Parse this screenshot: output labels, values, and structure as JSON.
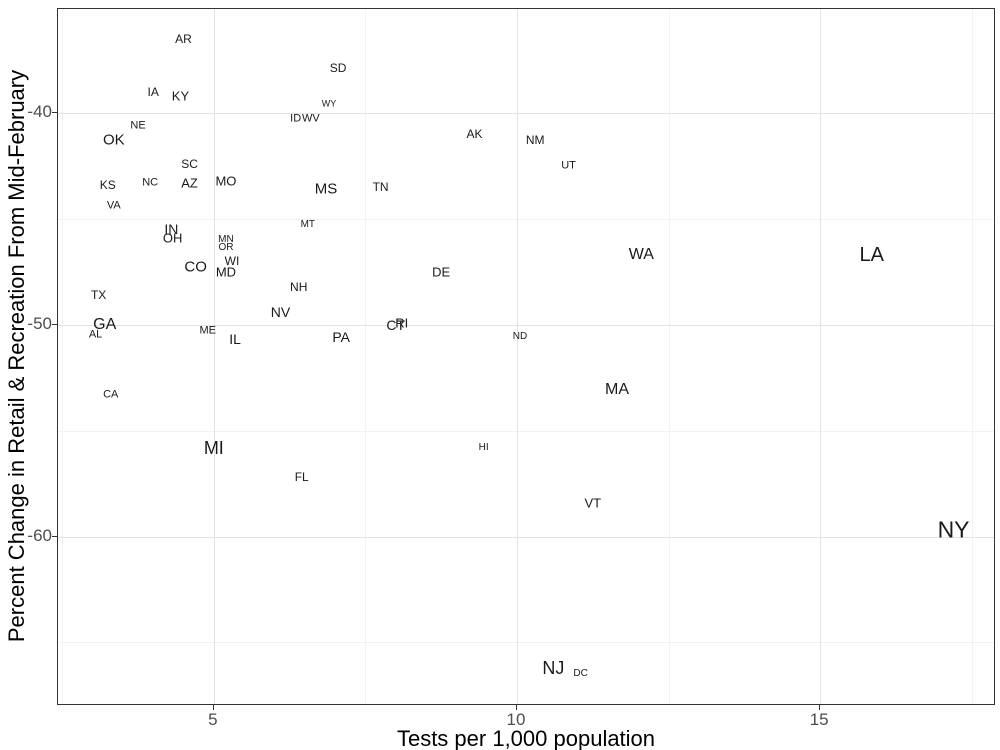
{
  "figure": {
    "background_color": "#ffffff",
    "panel_border_color": "#333333",
    "grid_major_color": "#e3e3e3",
    "grid_minor_color": "#f2f2f2",
    "axis_title_color": "#000000",
    "tick_label_color": "#4d4d4d",
    "state_label_color": "#1a1a1a"
  },
  "chart_data": {
    "type": "scatter",
    "title": "",
    "xlabel": "Tests per 1,000 population",
    "ylabel": "Percent Change in Retail & Recreation From Mid-February",
    "xlim": [
      2.43,
      17.9
    ],
    "ylim": [
      -68.0,
      -35.1
    ],
    "grid": true,
    "legend_position": "none",
    "marker_style": "state abbreviation text labels, font size varies by state",
    "x_ticks": [
      {
        "value": 5,
        "label": "5"
      },
      {
        "value": 10,
        "label": "10"
      },
      {
        "value": 15,
        "label": "15"
      }
    ],
    "y_ticks": [
      {
        "value": -40,
        "label": "-40"
      },
      {
        "value": -50,
        "label": "-50"
      },
      {
        "value": -60,
        "label": "-60"
      }
    ],
    "x_minor_gridlines": [
      2.5,
      7.5,
      12.5,
      17.5
    ],
    "y_minor_gridlines": [
      -45,
      -55,
      -65
    ],
    "states": [
      {
        "label": "AR",
        "x": 4.5,
        "y": -36.5,
        "size": 12
      },
      {
        "label": "SD",
        "x": 7.05,
        "y": -37.9,
        "size": 12
      },
      {
        "label": "IA",
        "x": 4.0,
        "y": -39.0,
        "size": 12
      },
      {
        "label": "KY",
        "x": 4.45,
        "y": -39.2,
        "size": 13
      },
      {
        "label": "WY",
        "x": 6.9,
        "y": -39.6,
        "size": 9
      },
      {
        "label": "ID",
        "x": 6.35,
        "y": -40.3,
        "size": 11
      },
      {
        "label": "WV",
        "x": 6.6,
        "y": -40.3,
        "size": 11
      },
      {
        "label": "NE",
        "x": 3.75,
        "y": -40.6,
        "size": 11
      },
      {
        "label": "AK",
        "x": 9.3,
        "y": -41.0,
        "size": 12
      },
      {
        "label": "OK",
        "x": 3.35,
        "y": -41.3,
        "size": 15
      },
      {
        "label": "NM",
        "x": 10.3,
        "y": -41.3,
        "size": 12
      },
      {
        "label": "SC",
        "x": 4.6,
        "y": -42.4,
        "size": 12
      },
      {
        "label": "UT",
        "x": 10.85,
        "y": -42.5,
        "size": 11
      },
      {
        "label": "MO",
        "x": 5.2,
        "y": -43.2,
        "size": 13
      },
      {
        "label": "NC",
        "x": 3.95,
        "y": -43.3,
        "size": 11
      },
      {
        "label": "AZ",
        "x": 4.6,
        "y": -43.3,
        "size": 13
      },
      {
        "label": "KS",
        "x": 3.25,
        "y": -43.4,
        "size": 12
      },
      {
        "label": "TN",
        "x": 7.75,
        "y": -43.5,
        "size": 12
      },
      {
        "label": "MS",
        "x": 6.85,
        "y": -43.6,
        "size": 15
      },
      {
        "label": "VA",
        "x": 3.35,
        "y": -44.4,
        "size": 11
      },
      {
        "label": "MT",
        "x": 6.55,
        "y": -45.3,
        "size": 10
      },
      {
        "label": "IN",
        "x": 4.3,
        "y": -45.5,
        "size": 14
      },
      {
        "label": "OH",
        "x": 4.32,
        "y": -45.9,
        "size": 13
      },
      {
        "label": "MN",
        "x": 5.2,
        "y": -46.0,
        "size": 10
      },
      {
        "label": "OR",
        "x": 5.2,
        "y": -46.4,
        "size": 10
      },
      {
        "label": "WA",
        "x": 12.05,
        "y": -46.7,
        "size": 16
      },
      {
        "label": "LA",
        "x": 15.85,
        "y": -46.7,
        "size": 20
      },
      {
        "label": "WI",
        "x": 5.3,
        "y": -47.0,
        "size": 12
      },
      {
        "label": "CO",
        "x": 4.7,
        "y": -47.3,
        "size": 15
      },
      {
        "label": "MD",
        "x": 5.2,
        "y": -47.5,
        "size": 13
      },
      {
        "label": "DE",
        "x": 8.75,
        "y": -47.5,
        "size": 13
      },
      {
        "label": "NH",
        "x": 6.4,
        "y": -48.2,
        "size": 12
      },
      {
        "label": "TX",
        "x": 3.1,
        "y": -48.6,
        "size": 12
      },
      {
        "label": "NV",
        "x": 6.1,
        "y": -49.4,
        "size": 14
      },
      {
        "label": "RI",
        "x": 8.1,
        "y": -49.9,
        "size": 13
      },
      {
        "label": "CT",
        "x": 8.0,
        "y": -50.0,
        "size": 14
      },
      {
        "label": "GA",
        "x": 3.2,
        "y": -50.0,
        "size": 16
      },
      {
        "label": "ME",
        "x": 4.9,
        "y": -50.3,
        "size": 11
      },
      {
        "label": "AL",
        "x": 3.05,
        "y": -50.5,
        "size": 11
      },
      {
        "label": "PA",
        "x": 7.1,
        "y": -50.6,
        "size": 14
      },
      {
        "label": "ND",
        "x": 10.05,
        "y": -50.6,
        "size": 10
      },
      {
        "label": "IL",
        "x": 5.35,
        "y": -50.7,
        "size": 14
      },
      {
        "label": "MA",
        "x": 11.65,
        "y": -53.1,
        "size": 16
      },
      {
        "label": "CA",
        "x": 3.3,
        "y": -53.3,
        "size": 11
      },
      {
        "label": "HI",
        "x": 9.45,
        "y": -55.8,
        "size": 10
      },
      {
        "label": "MI",
        "x": 5.0,
        "y": -55.8,
        "size": 18
      },
      {
        "label": "FL",
        "x": 6.45,
        "y": -57.2,
        "size": 12
      },
      {
        "label": "VT",
        "x": 11.25,
        "y": -58.4,
        "size": 13
      },
      {
        "label": "NY",
        "x": 17.2,
        "y": -59.7,
        "size": 23
      },
      {
        "label": "NJ",
        "x": 10.6,
        "y": -66.2,
        "size": 18
      },
      {
        "label": "DC",
        "x": 11.05,
        "y": -66.5,
        "size": 10
      }
    ]
  }
}
